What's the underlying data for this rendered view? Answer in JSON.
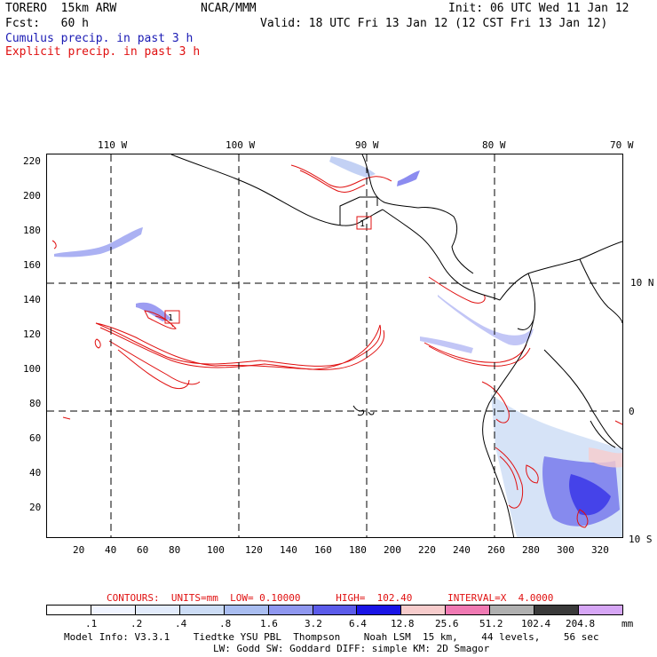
{
  "header": {
    "model": "TORERO  15km ARW",
    "org": "NCAR/MMM",
    "init": "Init: 06 UTC Wed 11 Jan 12",
    "fcst": "Fcst:   60 h",
    "valid": "Valid: 18 UTC Fri 13 Jan 12 (12 CST Fri 13 Jan 12)",
    "cumulus": "Cumulus precip. in past 3 h",
    "explicit": "Explicit precip. in past 3 h"
  },
  "lon_labels": [
    "110 W",
    "100 W",
    "90 W",
    "80 W",
    "70 W"
  ],
  "lat_labels": [
    "10 N",
    "0",
    "10 S"
  ],
  "y_ticks": [
    "220",
    "200",
    "180",
    "160",
    "140",
    "120",
    "100",
    "80",
    "60",
    "40",
    "20"
  ],
  "x_ticks": [
    "20",
    "40",
    "60",
    "80",
    "100",
    "120",
    "140",
    "160",
    "180",
    "200",
    "220",
    "240",
    "260",
    "280",
    "300",
    "320"
  ],
  "station_labels": [
    "1",
    "1"
  ],
  "contour_info": {
    "label": "CONTOURS:  UNITS=mm  LOW= 0.10000      HIGH=  102.40      INTERVAL=X  4.0000"
  },
  "legend": {
    "colors": [
      "#ffffff",
      "#f0f4ff",
      "#e2ebfb",
      "#ccdcf5",
      "#a9bdf0",
      "#8f97ef",
      "#5b5bea",
      "#1a14e6",
      "#f7cccc",
      "#f07ab3",
      "#b0b0b0",
      "#3a3a3a",
      "#d6a6f5"
    ],
    "labels": [
      ".1",
      ".2",
      ".4",
      ".8",
      "1.6",
      "3.2",
      "6.4",
      "12.8",
      "25.6",
      "51.2",
      "102.4",
      "204.8"
    ],
    "unit": "mm"
  },
  "footer": {
    "line1": "Model Info: V3.3.1    Tiedtke YSU PBL  Thompson    Noah LSM  15 km,    44 levels,    56 sec",
    "line2": "LW: Godd SW: Goddard DIFF: simple KM: 2D Smagor"
  }
}
